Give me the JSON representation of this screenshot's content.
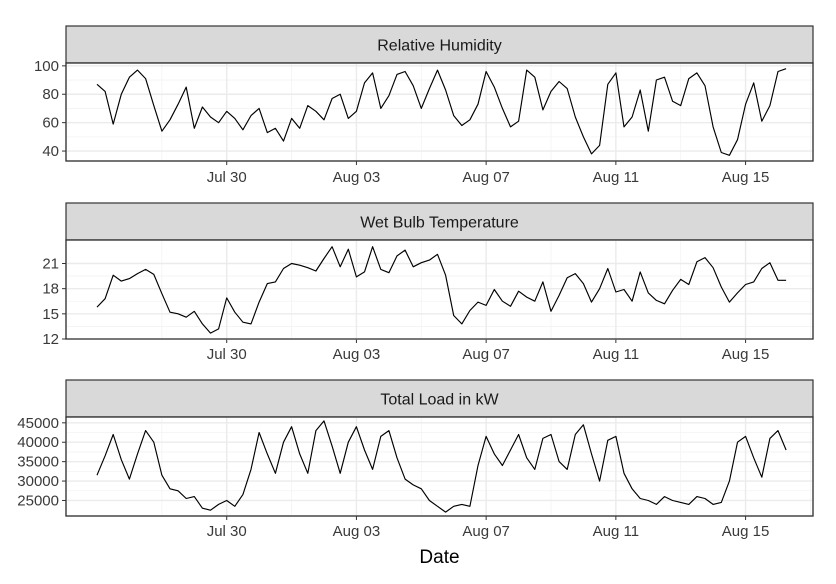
{
  "chart_data": {
    "type": "line",
    "layout": "faceted-vertical",
    "x_label": "Date",
    "x_tick_labels": [
      "Jul 30",
      "Aug 03",
      "Aug 07",
      "Aug 11",
      "Aug 15"
    ],
    "x_tick_dates": [
      "2016-07-30",
      "2016-08-03",
      "2016-08-07",
      "2016-08-11",
      "2016-08-15"
    ],
    "x_range": [
      "2016-07-26",
      "2016-08-16"
    ],
    "grid": true,
    "line_color": "#000000",
    "strip_color": "#d9d9d9",
    "facets": [
      {
        "id": "relative-humidity",
        "strip_label": "Relative Humidity",
        "y_ticks": [
          40,
          60,
          80,
          100
        ],
        "y_tick_labels": [
          "40",
          "60",
          "80",
          "100"
        ],
        "ylim": [
          33,
          102
        ],
        "series": {
          "x": [
            "2016-07-26T00",
            "2016-07-26T06",
            "2016-07-26T12",
            "2016-07-26T18",
            "2016-07-27T00",
            "2016-07-27T06",
            "2016-07-27T12",
            "2016-07-27T18",
            "2016-07-28T00",
            "2016-07-28T06",
            "2016-07-28T12",
            "2016-07-28T18",
            "2016-07-29T00",
            "2016-07-29T06",
            "2016-07-29T12",
            "2016-07-29T18",
            "2016-07-30T00",
            "2016-07-30T06",
            "2016-07-30T12",
            "2016-07-30T18",
            "2016-07-31T00",
            "2016-07-31T06",
            "2016-07-31T12",
            "2016-07-31T18",
            "2016-08-01T00",
            "2016-08-01T06",
            "2016-08-01T12",
            "2016-08-01T18",
            "2016-08-02T00",
            "2016-08-02T06",
            "2016-08-02T12",
            "2016-08-02T18",
            "2016-08-03T00",
            "2016-08-03T06",
            "2016-08-03T12",
            "2016-08-03T18",
            "2016-08-04T00",
            "2016-08-04T06",
            "2016-08-04T12",
            "2016-08-04T18",
            "2016-08-05T00",
            "2016-08-05T06",
            "2016-08-05T12",
            "2016-08-05T18",
            "2016-08-06T00",
            "2016-08-06T06",
            "2016-08-06T12",
            "2016-08-06T18",
            "2016-08-07T00",
            "2016-08-07T06",
            "2016-08-07T12",
            "2016-08-07T18",
            "2016-08-08T00",
            "2016-08-08T06",
            "2016-08-08T12",
            "2016-08-08T18",
            "2016-08-09T00",
            "2016-08-09T06",
            "2016-08-09T12",
            "2016-08-09T18",
            "2016-08-10T00",
            "2016-08-10T06",
            "2016-08-10T12",
            "2016-08-10T18",
            "2016-08-11T00",
            "2016-08-11T06",
            "2016-08-11T12",
            "2016-08-11T18",
            "2016-08-12T00",
            "2016-08-12T06",
            "2016-08-12T12",
            "2016-08-12T18",
            "2016-08-13T00",
            "2016-08-13T06",
            "2016-08-13T12",
            "2016-08-13T18",
            "2016-08-14T00",
            "2016-08-14T06",
            "2016-08-14T12",
            "2016-08-14T18",
            "2016-08-15T00",
            "2016-08-15T06",
            "2016-08-15T12",
            "2016-08-15T18",
            "2016-08-16T00",
            "2016-08-16T06"
          ],
          "y": [
            87,
            82,
            59,
            80,
            92,
            97,
            91,
            72,
            54,
            62,
            73,
            85,
            56,
            71,
            64,
            60,
            68,
            63,
            55,
            65,
            70,
            53,
            56,
            47,
            63,
            56,
            72,
            68,
            62,
            77,
            80,
            63,
            68,
            88,
            95,
            70,
            79,
            94,
            96,
            86,
            70,
            84,
            97,
            83,
            65,
            58,
            62,
            73,
            96,
            85,
            70,
            57,
            61,
            97,
            92,
            69,
            82,
            89,
            84,
            64,
            50,
            38,
            44,
            87,
            95,
            57,
            64,
            83,
            54,
            90,
            92,
            75,
            72,
            91,
            95,
            86,
            57,
            39,
            37,
            48,
            73,
            88,
            61,
            72,
            96,
            98
          ]
        }
      },
      {
        "id": "wet-bulb-temperature",
        "strip_label": "Wet Bulb Temperature",
        "y_ticks": [
          12,
          15,
          18,
          21
        ],
        "y_tick_labels": [
          "12",
          "15",
          "18",
          "21"
        ],
        "ylim": [
          12,
          23.8
        ],
        "series": {
          "x": [
            "2016-07-26T00",
            "2016-07-26T06",
            "2016-07-26T12",
            "2016-07-26T18",
            "2016-07-27T00",
            "2016-07-27T06",
            "2016-07-27T12",
            "2016-07-27T18",
            "2016-07-28T00",
            "2016-07-28T06",
            "2016-07-28T12",
            "2016-07-28T18",
            "2016-07-29T00",
            "2016-07-29T06",
            "2016-07-29T12",
            "2016-07-29T18",
            "2016-07-30T00",
            "2016-07-30T06",
            "2016-07-30T12",
            "2016-07-30T18",
            "2016-07-31T00",
            "2016-07-31T06",
            "2016-07-31T12",
            "2016-07-31T18",
            "2016-08-01T00",
            "2016-08-01T06",
            "2016-08-01T12",
            "2016-08-01T18",
            "2016-08-02T00",
            "2016-08-02T06",
            "2016-08-02T12",
            "2016-08-02T18",
            "2016-08-03T00",
            "2016-08-03T06",
            "2016-08-03T12",
            "2016-08-03T18",
            "2016-08-04T00",
            "2016-08-04T06",
            "2016-08-04T12",
            "2016-08-04T18",
            "2016-08-05T00",
            "2016-08-05T06",
            "2016-08-05T12",
            "2016-08-05T18",
            "2016-08-06T00",
            "2016-08-06T06",
            "2016-08-06T12",
            "2016-08-06T18",
            "2016-08-07T00",
            "2016-08-07T06",
            "2016-08-07T12",
            "2016-08-07T18",
            "2016-08-08T00",
            "2016-08-08T06",
            "2016-08-08T12",
            "2016-08-08T18",
            "2016-08-09T00",
            "2016-08-09T06",
            "2016-08-09T12",
            "2016-08-09T18",
            "2016-08-10T00",
            "2016-08-10T06",
            "2016-08-10T12",
            "2016-08-10T18",
            "2016-08-11T00",
            "2016-08-11T06",
            "2016-08-11T12",
            "2016-08-11T18",
            "2016-08-12T00",
            "2016-08-12T06",
            "2016-08-12T12",
            "2016-08-12T18",
            "2016-08-13T00",
            "2016-08-13T06",
            "2016-08-13T12",
            "2016-08-13T18",
            "2016-08-14T00",
            "2016-08-14T06",
            "2016-08-14T12",
            "2016-08-14T18",
            "2016-08-15T00",
            "2016-08-15T06",
            "2016-08-15T12",
            "2016-08-15T18",
            "2016-08-16T00",
            "2016-08-16T06"
          ],
          "y": [
            15.8,
            16.8,
            19.6,
            18.9,
            19.2,
            19.8,
            20.3,
            19.7,
            17.4,
            15.2,
            15.0,
            14.6,
            15.3,
            13.8,
            12.7,
            13.2,
            16.9,
            15.2,
            14.0,
            13.8,
            16.4,
            18.6,
            18.8,
            20.4,
            21.0,
            20.8,
            20.5,
            20.1,
            21.6,
            23.0,
            20.6,
            22.7,
            19.4,
            20.0,
            23.0,
            20.3,
            19.9,
            21.9,
            22.6,
            20.6,
            21.1,
            21.4,
            22.1,
            19.6,
            14.8,
            13.8,
            15.4,
            16.4,
            16.0,
            17.9,
            16.5,
            15.9,
            17.7,
            17.0,
            16.5,
            18.8,
            15.3,
            17.2,
            19.3,
            19.8,
            18.6,
            16.4,
            18.0,
            20.4,
            17.6,
            17.9,
            16.5,
            20.0,
            17.5,
            16.6,
            16.2,
            17.8,
            19.1,
            18.5,
            21.2,
            21.7,
            20.5,
            18.2,
            16.4,
            17.5,
            18.5,
            18.8,
            20.4,
            21.1,
            19.0,
            19.0
          ]
        }
      },
      {
        "id": "total-load",
        "strip_label": "Total Load in kW",
        "y_ticks": [
          25000,
          30000,
          35000,
          40000,
          45000
        ],
        "y_tick_labels": [
          "25000",
          "30000",
          "35000",
          "40000",
          "45000"
        ],
        "ylim": [
          21000,
          46500
        ],
        "series": {
          "x": [
            "2016-07-26T00",
            "2016-07-26T06",
            "2016-07-26T12",
            "2016-07-26T18",
            "2016-07-27T00",
            "2016-07-27T06",
            "2016-07-27T12",
            "2016-07-27T18",
            "2016-07-28T00",
            "2016-07-28T06",
            "2016-07-28T12",
            "2016-07-28T18",
            "2016-07-29T00",
            "2016-07-29T06",
            "2016-07-29T12",
            "2016-07-29T18",
            "2016-07-30T00",
            "2016-07-30T06",
            "2016-07-30T12",
            "2016-07-30T18",
            "2016-07-31T00",
            "2016-07-31T06",
            "2016-07-31T12",
            "2016-07-31T18",
            "2016-08-01T00",
            "2016-08-01T06",
            "2016-08-01T12",
            "2016-08-01T18",
            "2016-08-02T00",
            "2016-08-02T06",
            "2016-08-02T12",
            "2016-08-02T18",
            "2016-08-03T00",
            "2016-08-03T06",
            "2016-08-03T12",
            "2016-08-03T18",
            "2016-08-04T00",
            "2016-08-04T06",
            "2016-08-04T12",
            "2016-08-04T18",
            "2016-08-05T00",
            "2016-08-05T06",
            "2016-08-05T12",
            "2016-08-05T18",
            "2016-08-06T00",
            "2016-08-06T06",
            "2016-08-06T12",
            "2016-08-06T18",
            "2016-08-07T00",
            "2016-08-07T06",
            "2016-08-07T12",
            "2016-08-07T18",
            "2016-08-08T00",
            "2016-08-08T06",
            "2016-08-08T12",
            "2016-08-08T18",
            "2016-08-09T00",
            "2016-08-09T06",
            "2016-08-09T12",
            "2016-08-09T18",
            "2016-08-10T00",
            "2016-08-10T06",
            "2016-08-10T12",
            "2016-08-10T18",
            "2016-08-11T00",
            "2016-08-11T06",
            "2016-08-11T12",
            "2016-08-11T18",
            "2016-08-12T00",
            "2016-08-12T06",
            "2016-08-12T12",
            "2016-08-12T18",
            "2016-08-13T00",
            "2016-08-13T06",
            "2016-08-13T12",
            "2016-08-13T18",
            "2016-08-14T00",
            "2016-08-14T06",
            "2016-08-14T12",
            "2016-08-14T18",
            "2016-08-15T00",
            "2016-08-15T06",
            "2016-08-15T12",
            "2016-08-15T18",
            "2016-08-16T00",
            "2016-08-16T06"
          ],
          "y": [
            31500,
            36500,
            42000,
            35500,
            30500,
            37000,
            43000,
            40000,
            31500,
            28000,
            27500,
            25500,
            26000,
            23000,
            22500,
            24000,
            25000,
            23500,
            26500,
            33000,
            42500,
            37000,
            32000,
            40000,
            44000,
            37000,
            32000,
            43000,
            45500,
            39000,
            32000,
            40000,
            44000,
            38000,
            33000,
            41500,
            43000,
            36000,
            30500,
            29000,
            28000,
            25000,
            23500,
            22000,
            23500,
            24000,
            23500,
            34000,
            41500,
            37000,
            34000,
            38000,
            42000,
            36000,
            33000,
            41000,
            42000,
            35000,
            33000,
            42000,
            44500,
            37000,
            30000,
            40500,
            41500,
            32000,
            28000,
            25500,
            25000,
            24000,
            26000,
            25000,
            24500,
            24000,
            26000,
            25500,
            24000,
            24500,
            30000,
            40000,
            41500,
            36000,
            31000,
            41000,
            43000,
            38000
          ]
        }
      }
    ]
  }
}
